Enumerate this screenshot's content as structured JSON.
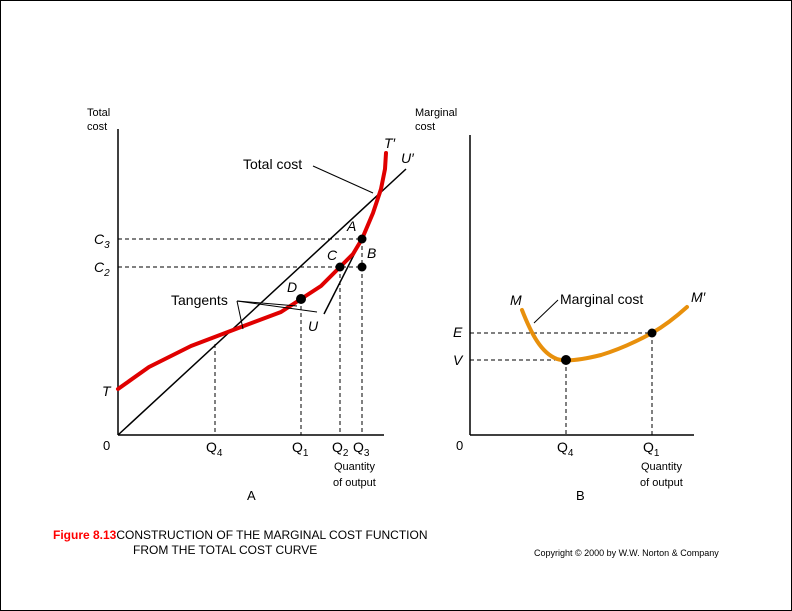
{
  "colors": {
    "total_cost_curve": "#e00000",
    "marginal_cost_curve": "#e8900c",
    "axis": "#000000",
    "caption_label": "#ff0000"
  },
  "panel_a": {
    "y_axis_label_line1": "Total",
    "y_axis_label_line2": "cost",
    "origin": "0",
    "x_axis_label_line1": "Quantity",
    "x_axis_label_line2": "of output",
    "panel_label": "A",
    "curve_label": "Total cost",
    "tangents_label": "Tangents",
    "T": "T",
    "T_prime": "T′",
    "U": "U",
    "U_prime": "U′",
    "point_A": "A",
    "point_B": "B",
    "point_C": "C",
    "point_D": "D",
    "C3": {
      "main": "C",
      "sub": "3"
    },
    "C2": {
      "main": "C",
      "sub": "2"
    },
    "Q4": {
      "main": "Q",
      "sub": "4"
    },
    "Q1": {
      "main": "Q",
      "sub": "1"
    },
    "Q2": {
      "main": "Q",
      "sub": "2"
    },
    "Q3": {
      "main": "Q",
      "sub": "3"
    }
  },
  "panel_b": {
    "y_axis_label_line1": "Marginal",
    "y_axis_label_line2": "cost",
    "origin": "0",
    "x_axis_label_line1": "Quantity",
    "x_axis_label_line2": "of output",
    "panel_label": "B",
    "curve_label": "Marginal cost",
    "M": "M",
    "M_prime": "M′",
    "E": "E",
    "V": "V",
    "Q4": {
      "main": "Q",
      "sub": "4"
    },
    "Q1": {
      "main": "Q",
      "sub": "1"
    }
  },
  "caption": {
    "figure_label": "Figure 8.13",
    "line1": "CONSTRUCTION OF THE MARGINAL COST FUNCTION",
    "line2": "FROM THE TOTAL COST CURVE"
  },
  "copyright": "Copyright © 2000 by W.W. Norton & Company"
}
